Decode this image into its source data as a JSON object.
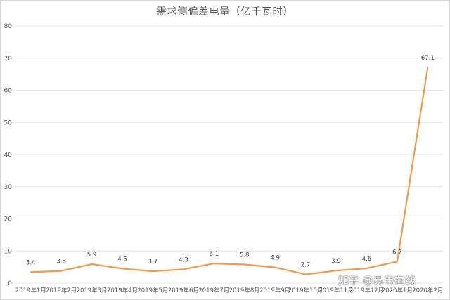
{
  "chart_data": {
    "type": "line",
    "title": "需求侧偏差电量（亿千瓦时）",
    "categories": [
      "2019年1月",
      "2019年2月",
      "2019年3月",
      "2019年4月",
      "2019年5月",
      "2019年6月",
      "2019年7月",
      "2019年8月",
      "2019年9月",
      "2019年10月",
      "2019年11月",
      "2019年12月",
      "2020年1月",
      "2020年2月"
    ],
    "series": [
      {
        "values": [
          3.4,
          3.8,
          5.9,
          4.5,
          3.7,
          4.3,
          6.1,
          5.8,
          4.9,
          2.7,
          3.9,
          4.6,
          6.7,
          67.1
        ]
      }
    ],
    "ylim": [
      0,
      80
    ],
    "yticks": [
      0,
      10,
      20,
      30,
      40,
      50,
      60,
      70,
      80
    ],
    "grid": true,
    "line_color": "#ED9B4E",
    "grid_color": "#e3e3e3"
  },
  "watermark": "知乎 @易电在线"
}
